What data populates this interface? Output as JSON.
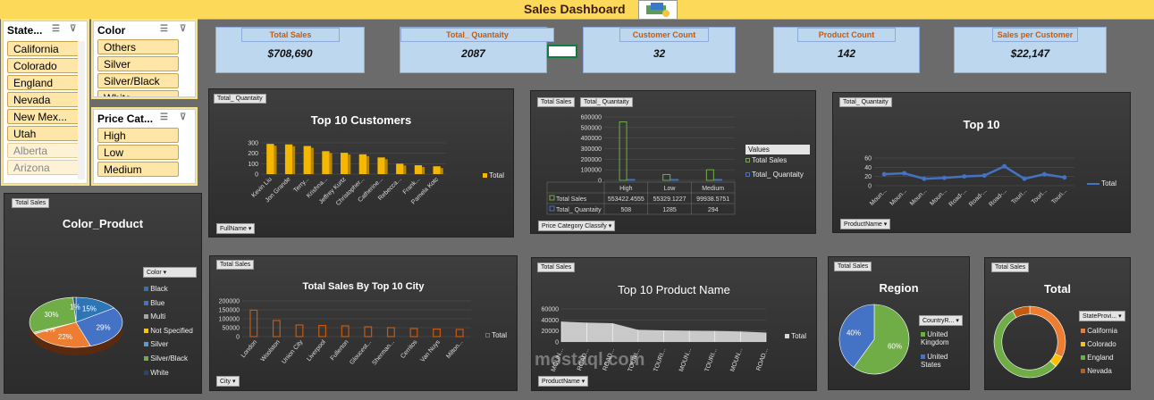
{
  "header": {
    "title": "Sales Dashboard"
  },
  "slicers": {
    "state": {
      "title": "State...",
      "items": [
        "California",
        "Colorado",
        "England",
        "Nevada",
        "New Mex...",
        "Utah",
        "Alberta",
        "Arizona"
      ]
    },
    "color": {
      "title": "Color",
      "items": [
        "Others",
        "Silver",
        "Silver/Black",
        "White"
      ]
    },
    "price": {
      "title": "Price Cat...",
      "items": [
        "High",
        "Low",
        "Medium"
      ]
    }
  },
  "kpis": [
    {
      "label": "Total Sales",
      "value": "$708,690"
    },
    {
      "label": "Total_ Quantaity",
      "value": "2087"
    },
    {
      "label": "Customer Count",
      "value": "32"
    },
    {
      "label": "Product Count",
      "value": "142"
    },
    {
      "label": "Sales per Customer",
      "value": "$22,147"
    }
  ],
  "panels": {
    "top_customers": {
      "tag": "Total_ Quantaity",
      "title": "Top 10 Customers",
      "filter": "FullName",
      "legend": "Total"
    },
    "price_category": {
      "tag1": "Total Sales",
      "tag2": "Total_ Quantaity",
      "filter": "Price Category Classify",
      "legend_title": "Values",
      "legend": [
        "Total Sales",
        "Total_ Quantaity"
      ]
    },
    "top10_products_line": {
      "tag": "Total_ Quantaity",
      "title": "Top 10",
      "filter": "ProductName",
      "legend": "Total"
    },
    "color_product": {
      "tag": "Total Sales",
      "title": "Color_Product",
      "filter": "Color",
      "legend": [
        "Black",
        "Blue",
        "Multi",
        "Not Specified",
        "Silver",
        "Silver/Black",
        "White"
      ]
    },
    "top_city": {
      "tag": "Total Sales",
      "title": "Total Sales By Top 10 City",
      "filter": "City",
      "legend": "Total"
    },
    "top_product_name": {
      "tag": "Total Sales",
      "title": "Top 10 Product Name",
      "filter": "ProductName",
      "legend": "Total"
    },
    "region": {
      "tag": "Total Sales",
      "title": "Region",
      "filter": "CountryR...",
      "legend": [
        "United Kingdom",
        "United States"
      ]
    },
    "total_donut": {
      "tag": "Total Sales",
      "title": "Total",
      "filter": "StateProvi...",
      "legend": [
        "California",
        "Colorado",
        "England",
        "Nevada"
      ]
    }
  },
  "chart_data": [
    {
      "type": "bar",
      "title": "Top 10 Customers",
      "categories": [
        "Kevin Liu",
        "Jon Grande",
        "Terry...",
        "Krishna...",
        "Jeffrey Kurtz",
        "Christopher...",
        "Catherine...",
        "Rebecca...",
        "Frank...",
        "Pamela Kotc"
      ],
      "values": [
        290,
        285,
        270,
        220,
        205,
        190,
        160,
        100,
        85,
        75
      ],
      "ylim": [
        0,
        300
      ],
      "yticks": [
        "0",
        "100",
        "200",
        "300"
      ],
      "color": "#f5b800"
    },
    {
      "type": "bar",
      "title": "",
      "categories": [
        "High",
        "Low",
        "Medium"
      ],
      "series": [
        {
          "name": "Total Sales",
          "values": [
            553422.4555,
            55329.1227,
            99938.5751
          ],
          "labels": [
            "553422.4555",
            "55329.1227",
            "99938.5751"
          ]
        },
        {
          "name": "Total_ Quantaity",
          "values": [
            508,
            1285,
            294
          ],
          "labels": [
            "508",
            "1285",
            "294"
          ]
        }
      ],
      "ylim": [
        0,
        600000
      ],
      "yticks": [
        "0",
        "100000",
        "200000",
        "300000",
        "400000",
        "500000",
        "600000"
      ]
    },
    {
      "type": "line",
      "title": "Top 10",
      "categories": [
        "Moun...",
        "Moun...",
        "Moun...",
        "Moun...",
        "Road-...",
        "Road-...",
        "Road-...",
        "Touri...",
        "Touri...",
        "Touri..."
      ],
      "values": [
        25,
        27,
        15,
        17,
        20,
        22,
        42,
        15,
        25,
        18
      ],
      "ylim": [
        0,
        60
      ],
      "yticks": [
        "0",
        "20",
        "40",
        "60"
      ],
      "color": "#4472c4"
    },
    {
      "type": "pie",
      "title": "Color_Product",
      "labels": [
        "Black",
        "Blue",
        "Multi",
        "Not Specified",
        "Silver",
        "Silver/Black",
        "White"
      ],
      "values": [
        15,
        29,
        0,
        22,
        1,
        30,
        1
      ],
      "data_labels": [
        "15%",
        "29%",
        "0%",
        "22%",
        "1%",
        "30%",
        "1%"
      ],
      "colors": [
        "#2e75b6",
        "#4472c4",
        "#a5a5a5",
        "#ed7d31",
        "#bfbfbf",
        "#70ad47",
        "#264478"
      ]
    },
    {
      "type": "bar",
      "title": "Total Sales By Top 10 City",
      "categories": [
        "London",
        "Woolston",
        "Union City",
        "Liverpool",
        "Fullerton",
        "Gloucest...",
        "Sherman...",
        "Cerritos",
        "Van Nuys",
        "Milton..."
      ],
      "values": [
        148000,
        90000,
        65000,
        62000,
        60000,
        55000,
        50000,
        45000,
        42000,
        40000
      ],
      "ylim": [
        0,
        200000
      ],
      "yticks": [
        "0",
        "50000",
        "100000",
        "150000",
        "200000"
      ],
      "color": "#c55a11"
    },
    {
      "type": "area",
      "title": "Top 10 Product Name",
      "categories": [
        "MOUN...",
        "ROAD...",
        "ROAD...",
        "TOURI...",
        "TOURI...",
        "MOUN...",
        "TOURI...",
        "MOUN...",
        "ROAD..."
      ],
      "values": [
        37000,
        35000,
        34000,
        22000,
        21000,
        20500,
        20000,
        19000,
        17000
      ],
      "ylim": [
        0,
        60000
      ],
      "yticks": [
        "0",
        "20000",
        "40000",
        "60000"
      ],
      "color": "#d9d9d9"
    },
    {
      "type": "pie",
      "title": "Region",
      "labels": [
        "United Kingdom",
        "United States"
      ],
      "values": [
        60,
        40
      ],
      "data_labels": [
        "60%",
        "40%"
      ],
      "colors": [
        "#70ad47",
        "#4472c4"
      ]
    },
    {
      "type": "pie",
      "title": "Total",
      "labels": [
        "California",
        "Colorado",
        "England",
        "Nevada"
      ],
      "values": [
        32,
        5,
        55,
        8
      ],
      "colors": [
        "#ed7d31",
        "#ffc000",
        "#70ad47",
        "#c55a11"
      ]
    }
  ],
  "watermark": "mostaql.com"
}
